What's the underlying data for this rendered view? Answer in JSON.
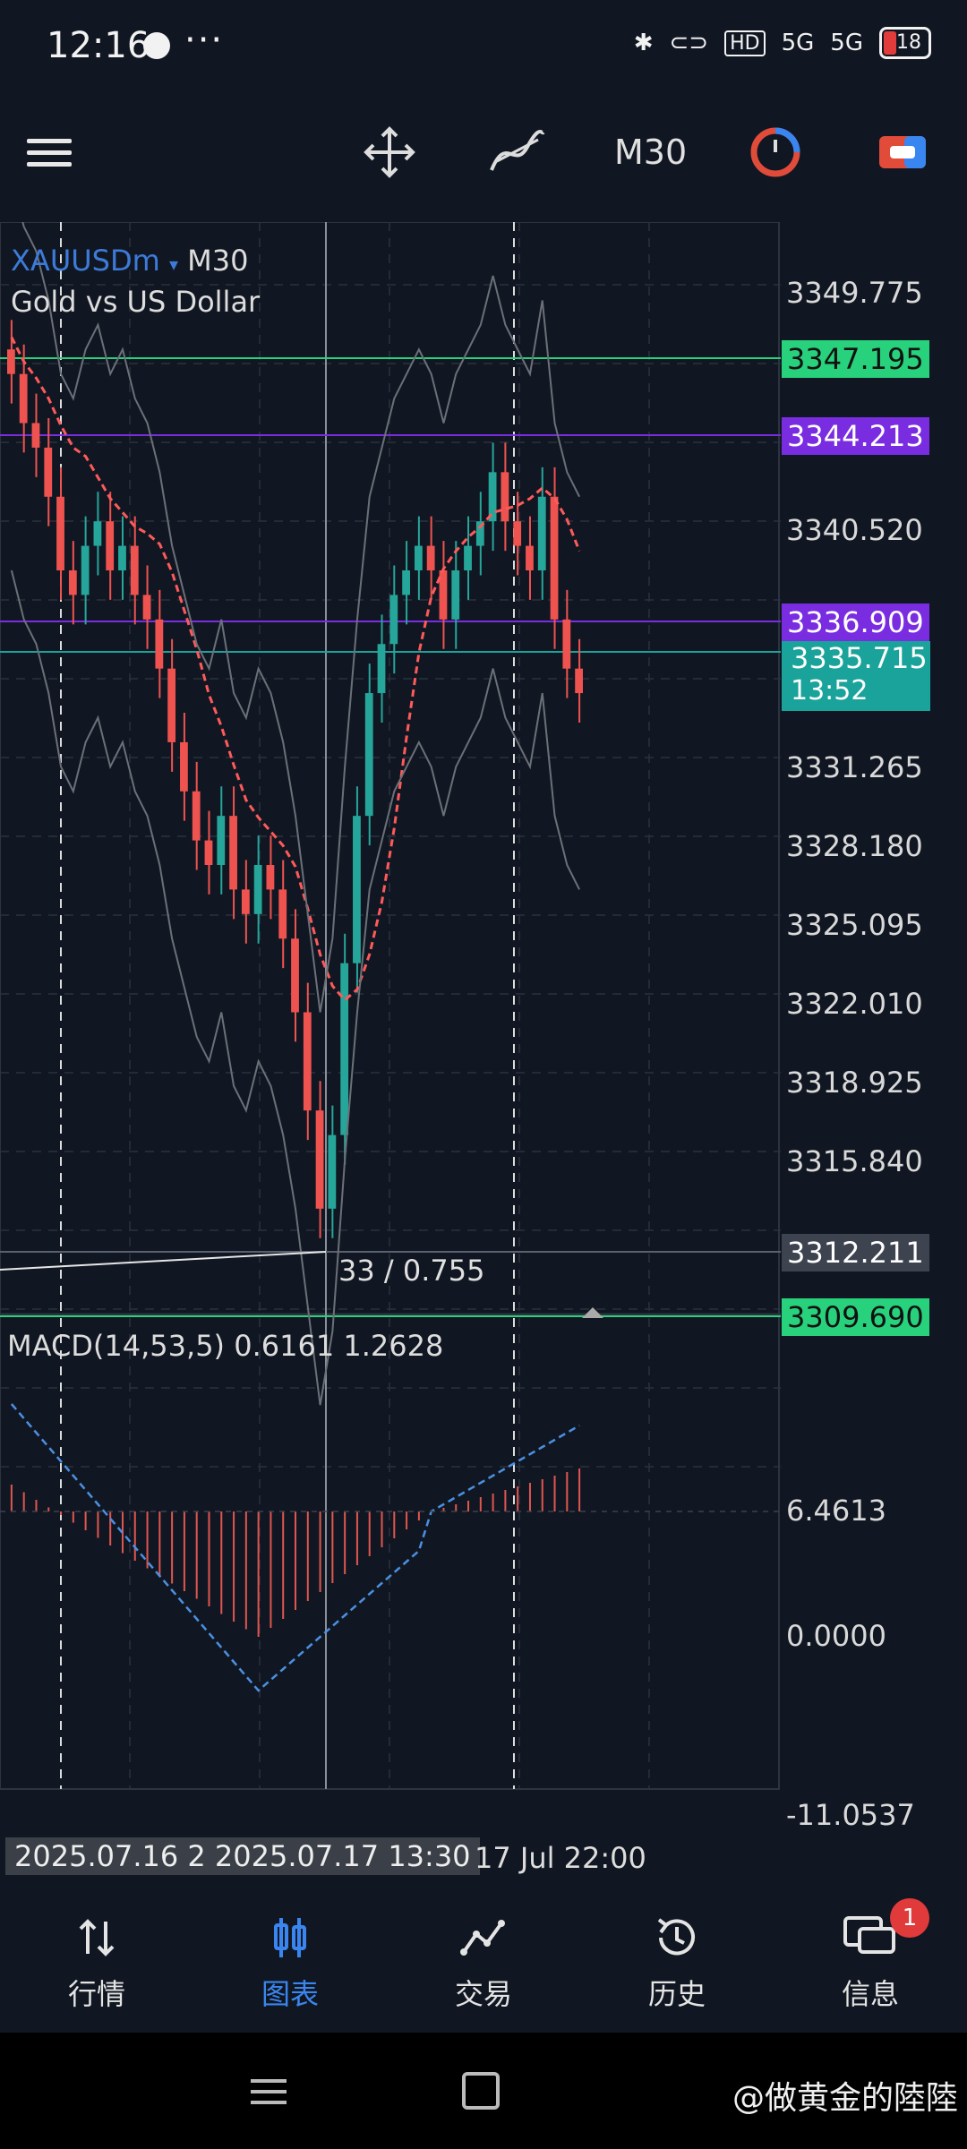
{
  "status_bar": {
    "time": "12:16",
    "dots": "···",
    "network": "5G",
    "network2": "5G",
    "battery": "18"
  },
  "toolbar": {
    "timeframe": "M30"
  },
  "chart": {
    "symbol": "XAUUSDm",
    "timeframe_label": "M30",
    "description": "Gold vs US Dollar",
    "measure_text": "33 / 0.755",
    "macd_label": "MACD(14,53,5) 0.6161 1.2628"
  },
  "price_axis": {
    "ticks": [
      "3349.775",
      "3340.520",
      "3331.265",
      "3328.180",
      "3325.095",
      "3322.010",
      "3318.925",
      "3315.840",
      "0.0000",
      "-11.0537"
    ],
    "tags": {
      "green_top": "3347.195",
      "purple_top": "3344.213",
      "purple_mid": "3336.909",
      "current_price": "3335.715",
      "countdown": "13:52",
      "gray_low": "3312.211",
      "green_low": "3309.690",
      "macd_top": "6.4613"
    },
    "colors": {
      "green": "#28d17c",
      "purple": "#7a2de0",
      "teal": "#1aa39a",
      "gray": "#3d4450"
    }
  },
  "time_axis": {
    "highlight": "2025.07.16 2 2025.07.17 13:30",
    "label": "17 Jul 22:00"
  },
  "bottom_nav": {
    "items": [
      {
        "label": "行情",
        "icon": "arrows-updown-icon"
      },
      {
        "label": "图表",
        "icon": "candles-icon"
      },
      {
        "label": "交易",
        "icon": "trade-line-icon"
      },
      {
        "label": "历史",
        "icon": "history-icon"
      },
      {
        "label": "信息",
        "icon": "chat-icon"
      }
    ],
    "active_index": 1,
    "badge_count": "1"
  },
  "watermark": "@做黄金的陸陸",
  "chart_data": {
    "type": "candlestick",
    "series": [
      {
        "name": "",
        "values": [
          3348,
          3346,
          3345,
          3343,
          3340,
          3339,
          3341,
          3342,
          3340,
          3341,
          3339,
          3338,
          3336,
          3333,
          3331,
          3329,
          3328,
          3330,
          3327,
          3326,
          3328,
          3327,
          3325,
          3322,
          3318,
          3314,
          3317,
          3324,
          3330,
          3335,
          3337,
          3339,
          3340,
          3341,
          3340,
          3338,
          3340,
          3341,
          3342,
          3344,
          3342,
          3341,
          3340,
          3343,
          3338,
          3336,
          3335
        ]
      }
    ],
    "ylim": [
      3309.69,
      3352.0
    ]
  }
}
